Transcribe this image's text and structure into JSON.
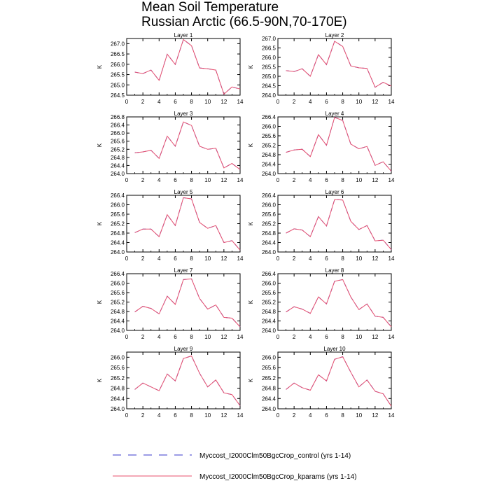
{
  "chart_data": {
    "type": "line",
    "title": "Mean Soil Temperature",
    "subtitle": "Russian Arctic (66.5-90N,70-170E)",
    "xlabel": "",
    "ylabel": "K",
    "xlim": [
      0,
      14
    ],
    "xticks": [
      0,
      2,
      4,
      6,
      8,
      10,
      12,
      14
    ],
    "legend": [
      {
        "name": "Myccost_I2000Clm50BgcCrop_control (yrs 1-14)",
        "color": "#3a3acc",
        "style": "dashed"
      },
      {
        "name": "Myccost_I2000Clm50BgcCrop_kparams (yrs 1-14)",
        "color": "#e8506e",
        "style": "solid"
      }
    ],
    "x": [
      1,
      2,
      3,
      4,
      5,
      6,
      7,
      8,
      9,
      10,
      11,
      12,
      13,
      14
    ],
    "panels": [
      {
        "title": "Layer 1",
        "ylim": [
          264.5,
          267.25
        ],
        "yticks": [
          "264.5",
          "265.0",
          "265.5",
          "266.0",
          "266.5",
          "267.0"
        ],
        "ytick_values": [
          264.5,
          265.0,
          265.5,
          266.0,
          266.5,
          267.0
        ],
        "series": [
          {
            "name": "control",
            "values": [
              265.62,
              265.55,
              265.72,
              265.22,
              266.49,
              265.99,
              267.2,
              266.9,
              265.82,
              265.78,
              265.72,
              264.55,
              264.9,
              264.8
            ]
          },
          {
            "name": "kparams",
            "values": [
              265.62,
              265.55,
              265.72,
              265.22,
              266.49,
              265.99,
              267.2,
              266.9,
              265.82,
              265.78,
              265.72,
              264.55,
              264.9,
              264.8
            ]
          }
        ]
      },
      {
        "title": "Layer 2",
        "ylim": [
          264.0,
          267.0
        ],
        "yticks": [
          "264.0",
          "264.5",
          "265.0",
          "265.5",
          "266.0",
          "266.5",
          "267.0"
        ],
        "ytick_values": [
          264.0,
          264.5,
          265.0,
          265.5,
          266.0,
          266.5,
          267.0
        ],
        "series": [
          {
            "name": "control",
            "values": [
              265.3,
              265.25,
              265.4,
              265.0,
              266.15,
              265.62,
              266.85,
              266.58,
              265.55,
              265.45,
              265.42,
              264.42,
              264.68,
              264.48
            ]
          },
          {
            "name": "kparams",
            "values": [
              265.3,
              265.25,
              265.4,
              265.0,
              266.15,
              265.62,
              266.85,
              266.58,
              265.55,
              265.45,
              265.42,
              264.42,
              264.68,
              264.48
            ]
          }
        ]
      },
      {
        "title": "Layer 3",
        "ylim": [
          264.0,
          266.8
        ],
        "yticks": [
          "264.0",
          "264.4",
          "264.8",
          "265.2",
          "265.6",
          "266.0",
          "266.4",
          "266.8"
        ],
        "ytick_values": [
          264.0,
          264.4,
          264.8,
          265.2,
          265.6,
          266.0,
          266.4,
          266.8
        ],
        "series": [
          {
            "name": "control",
            "values": [
              265.03,
              265.07,
              265.15,
              264.75,
              265.85,
              265.35,
              266.55,
              266.38,
              265.35,
              265.2,
              265.25,
              264.28,
              264.5,
              264.2
            ]
          },
          {
            "name": "kparams",
            "values": [
              265.03,
              265.07,
              265.15,
              264.75,
              265.85,
              265.35,
              266.55,
              266.38,
              265.35,
              265.2,
              265.25,
              264.28,
              264.5,
              264.2
            ]
          }
        ]
      },
      {
        "title": "Layer 4",
        "ylim": [
          264.0,
          266.4
        ],
        "yticks": [
          "264.0",
          "264.4",
          "264.8",
          "265.2",
          "265.6",
          "266.0",
          "266.4"
        ],
        "ytick_values": [
          264.0,
          264.4,
          264.8,
          265.2,
          265.6,
          266.0,
          266.4
        ],
        "series": [
          {
            "name": "control",
            "values": [
              264.9,
              265.0,
              265.03,
              264.72,
              265.65,
              265.2,
              266.38,
              266.25,
              265.25,
              265.05,
              265.15,
              264.35,
              264.5,
              264.1
            ]
          },
          {
            "name": "kparams",
            "values": [
              264.9,
              265.0,
              265.03,
              264.72,
              265.65,
              265.2,
              266.38,
              266.25,
              265.25,
              265.05,
              265.15,
              264.35,
              264.5,
              264.1
            ]
          }
        ]
      },
      {
        "title": "Layer 5",
        "ylim": [
          264.0,
          266.4
        ],
        "yticks": [
          "264.0",
          "264.4",
          "264.8",
          "265.2",
          "265.6",
          "266.0",
          "266.4"
        ],
        "ytick_values": [
          264.0,
          264.4,
          264.8,
          265.2,
          265.6,
          266.0,
          266.4
        ],
        "series": [
          {
            "name": "control",
            "values": [
              264.82,
              264.97,
              264.97,
              264.65,
              265.58,
              265.12,
              266.3,
              266.25,
              265.25,
              265.0,
              265.12,
              264.4,
              264.48,
              264.08
            ]
          },
          {
            "name": "kparams",
            "values": [
              264.82,
              264.97,
              264.97,
              264.65,
              265.58,
              265.12,
              266.3,
              266.25,
              265.25,
              265.0,
              265.12,
              264.4,
              264.48,
              264.08
            ]
          }
        ]
      },
      {
        "title": "Layer 6",
        "ylim": [
          264.0,
          266.4
        ],
        "yticks": [
          "264.0",
          "264.4",
          "264.8",
          "265.2",
          "265.6",
          "266.0",
          "266.4"
        ],
        "ytick_values": [
          264.0,
          264.4,
          264.8,
          265.2,
          265.6,
          266.0,
          266.4
        ],
        "series": [
          {
            "name": "control",
            "values": [
              264.8,
              264.98,
              264.93,
              264.65,
              265.5,
              265.1,
              266.22,
              266.2,
              265.3,
              264.95,
              265.12,
              264.47,
              264.5,
              264.1
            ]
          },
          {
            "name": "kparams",
            "values": [
              264.8,
              264.98,
              264.93,
              264.65,
              265.5,
              265.1,
              266.22,
              266.2,
              265.3,
              264.95,
              265.12,
              264.47,
              264.5,
              264.1
            ]
          }
        ]
      },
      {
        "title": "Layer 7",
        "ylim": [
          264.0,
          266.4
        ],
        "yticks": [
          "264.0",
          "264.4",
          "264.8",
          "265.2",
          "265.6",
          "266.0",
          "266.4"
        ],
        "ytick_values": [
          264.0,
          264.4,
          264.8,
          265.2,
          265.6,
          266.0,
          266.4
        ],
        "series": [
          {
            "name": "control",
            "values": [
              264.78,
              265.02,
              264.93,
              264.7,
              265.45,
              265.1,
              266.15,
              266.18,
              265.35,
              264.9,
              265.08,
              264.55,
              264.52,
              264.15
            ]
          },
          {
            "name": "kparams",
            "values": [
              264.78,
              265.02,
              264.93,
              264.7,
              265.45,
              265.1,
              266.15,
              266.18,
              265.35,
              264.9,
              265.08,
              264.55,
              264.52,
              264.15
            ]
          }
        ]
      },
      {
        "title": "Layer 8",
        "ylim": [
          264.0,
          266.4
        ],
        "yticks": [
          "264.0",
          "264.4",
          "264.8",
          "265.2",
          "265.6",
          "266.0",
          "266.4"
        ],
        "ytick_values": [
          264.0,
          264.4,
          264.8,
          265.2,
          265.6,
          266.0,
          266.4
        ],
        "series": [
          {
            "name": "control",
            "values": [
              264.78,
              265.0,
              264.9,
              264.72,
              265.42,
              265.12,
              266.08,
              266.15,
              265.42,
              264.88,
              265.12,
              264.6,
              264.55,
              264.15
            ]
          },
          {
            "name": "kparams",
            "values": [
              264.78,
              265.0,
              264.9,
              264.72,
              265.42,
              265.12,
              266.08,
              266.15,
              265.42,
              264.88,
              265.12,
              264.6,
              264.55,
              264.15
            ]
          }
        ]
      },
      {
        "title": "Layer 9",
        "ylim": [
          264.0,
          266.2
        ],
        "yticks": [
          "264.0",
          "264.4",
          "264.8",
          "265.2",
          "265.6",
          "266.0"
        ],
        "ytick_values": [
          264.0,
          264.4,
          264.8,
          265.2,
          265.6,
          266.0
        ],
        "series": [
          {
            "name": "control",
            "values": [
              264.75,
              265.0,
              264.85,
              264.7,
              265.35,
              265.08,
              265.95,
              266.05,
              265.38,
              264.85,
              265.12,
              264.62,
              264.55,
              264.12
            ]
          },
          {
            "name": "kparams",
            "values": [
              264.75,
              265.0,
              264.85,
              264.7,
              265.35,
              265.08,
              265.95,
              266.05,
              265.38,
              264.85,
              265.12,
              264.62,
              264.55,
              264.12
            ]
          }
        ]
      },
      {
        "title": "Layer 10",
        "ylim": [
          264.0,
          266.2
        ],
        "yticks": [
          "264.0",
          "264.4",
          "264.8",
          "265.2",
          "265.6",
          "266.0"
        ],
        "ytick_values": [
          264.0,
          264.4,
          264.8,
          265.2,
          265.6,
          266.0
        ],
        "series": [
          {
            "name": "control",
            "values": [
              264.75,
              265.0,
              264.82,
              264.72,
              265.32,
              265.08,
              265.92,
              266.02,
              265.42,
              264.85,
              265.12,
              264.68,
              264.58,
              264.1
            ]
          },
          {
            "name": "kparams",
            "values": [
              264.75,
              265.0,
              264.82,
              264.72,
              265.32,
              265.08,
              265.92,
              266.02,
              265.42,
              264.85,
              265.12,
              264.68,
              264.58,
              264.1
            ]
          }
        ]
      }
    ]
  }
}
